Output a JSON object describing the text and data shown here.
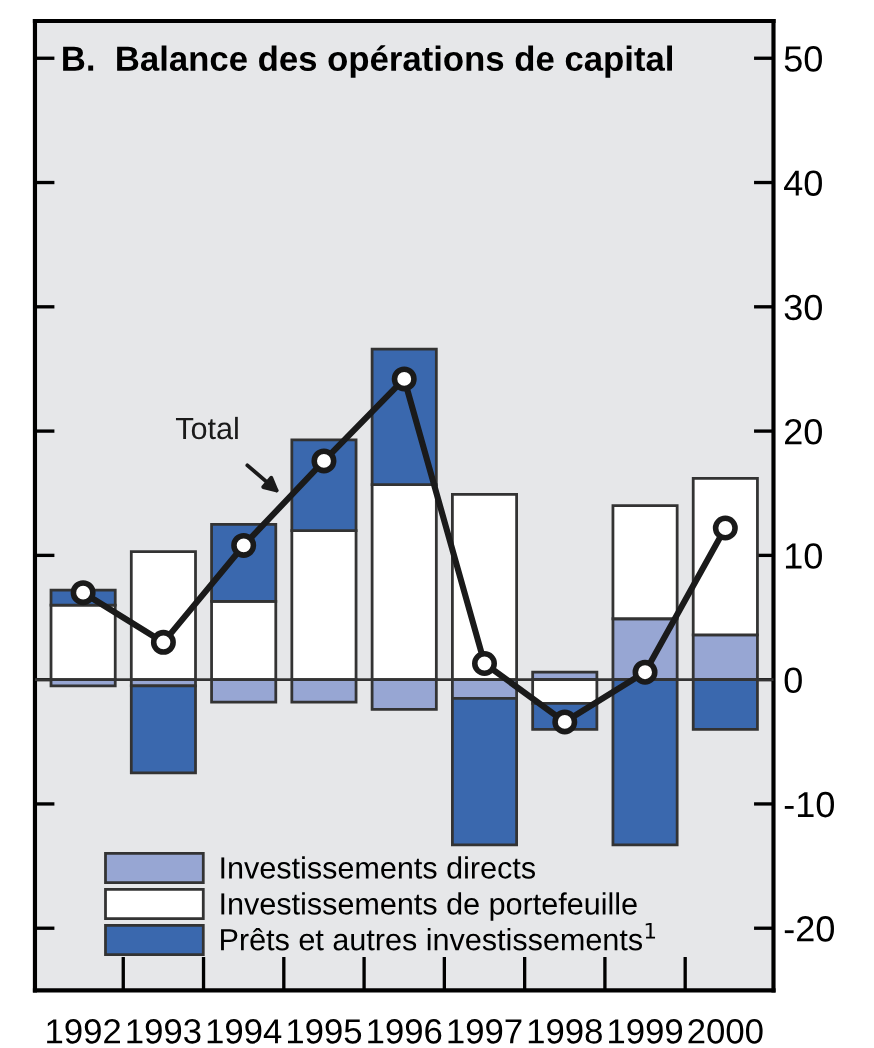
{
  "chart_data": {
    "type": "bar",
    "stacked": true,
    "title": "B.  Balance des opérations de capital",
    "categories": [
      "1992",
      "1993",
      "1994",
      "1995",
      "1996",
      "1997",
      "1998",
      "1999",
      "2000"
    ],
    "series": [
      {
        "name": "Investissements directs",
        "color": "#97a6d3",
        "values": [
          -0.5,
          -0.5,
          -1.8,
          -1.8,
          -2.4,
          -1.5,
          0.6,
          4.9,
          3.6
        ]
      },
      {
        "name": "Investissements de portefeuille",
        "color": "#ffffff",
        "values": [
          6,
          10.3,
          6.3,
          12,
          15.7,
          14.9,
          -1.9,
          9.1,
          12.6
        ]
      },
      {
        "name": "Prêts et autres investissements$^{1}$",
        "color": "#3a68ae",
        "values": [
          1.2,
          -7,
          6.2,
          7.3,
          10.9,
          -11.8,
          -2.1,
          -13.3,
          -4
        ]
      },
      {
        "name": "Total",
        "type": "line",
        "color": "#1a1a1a",
        "marker": "circle",
        "values": [
          7,
          3,
          10.8,
          17.6,
          24.2,
          1.3,
          -3.4,
          0.6,
          12.2
        ]
      }
    ],
    "ylim": [
      -25,
      53
    ],
    "yticks": [
      -20,
      -10,
      0,
      10,
      20,
      30,
      40,
      50
    ],
    "legend": "bottom left"
  }
}
